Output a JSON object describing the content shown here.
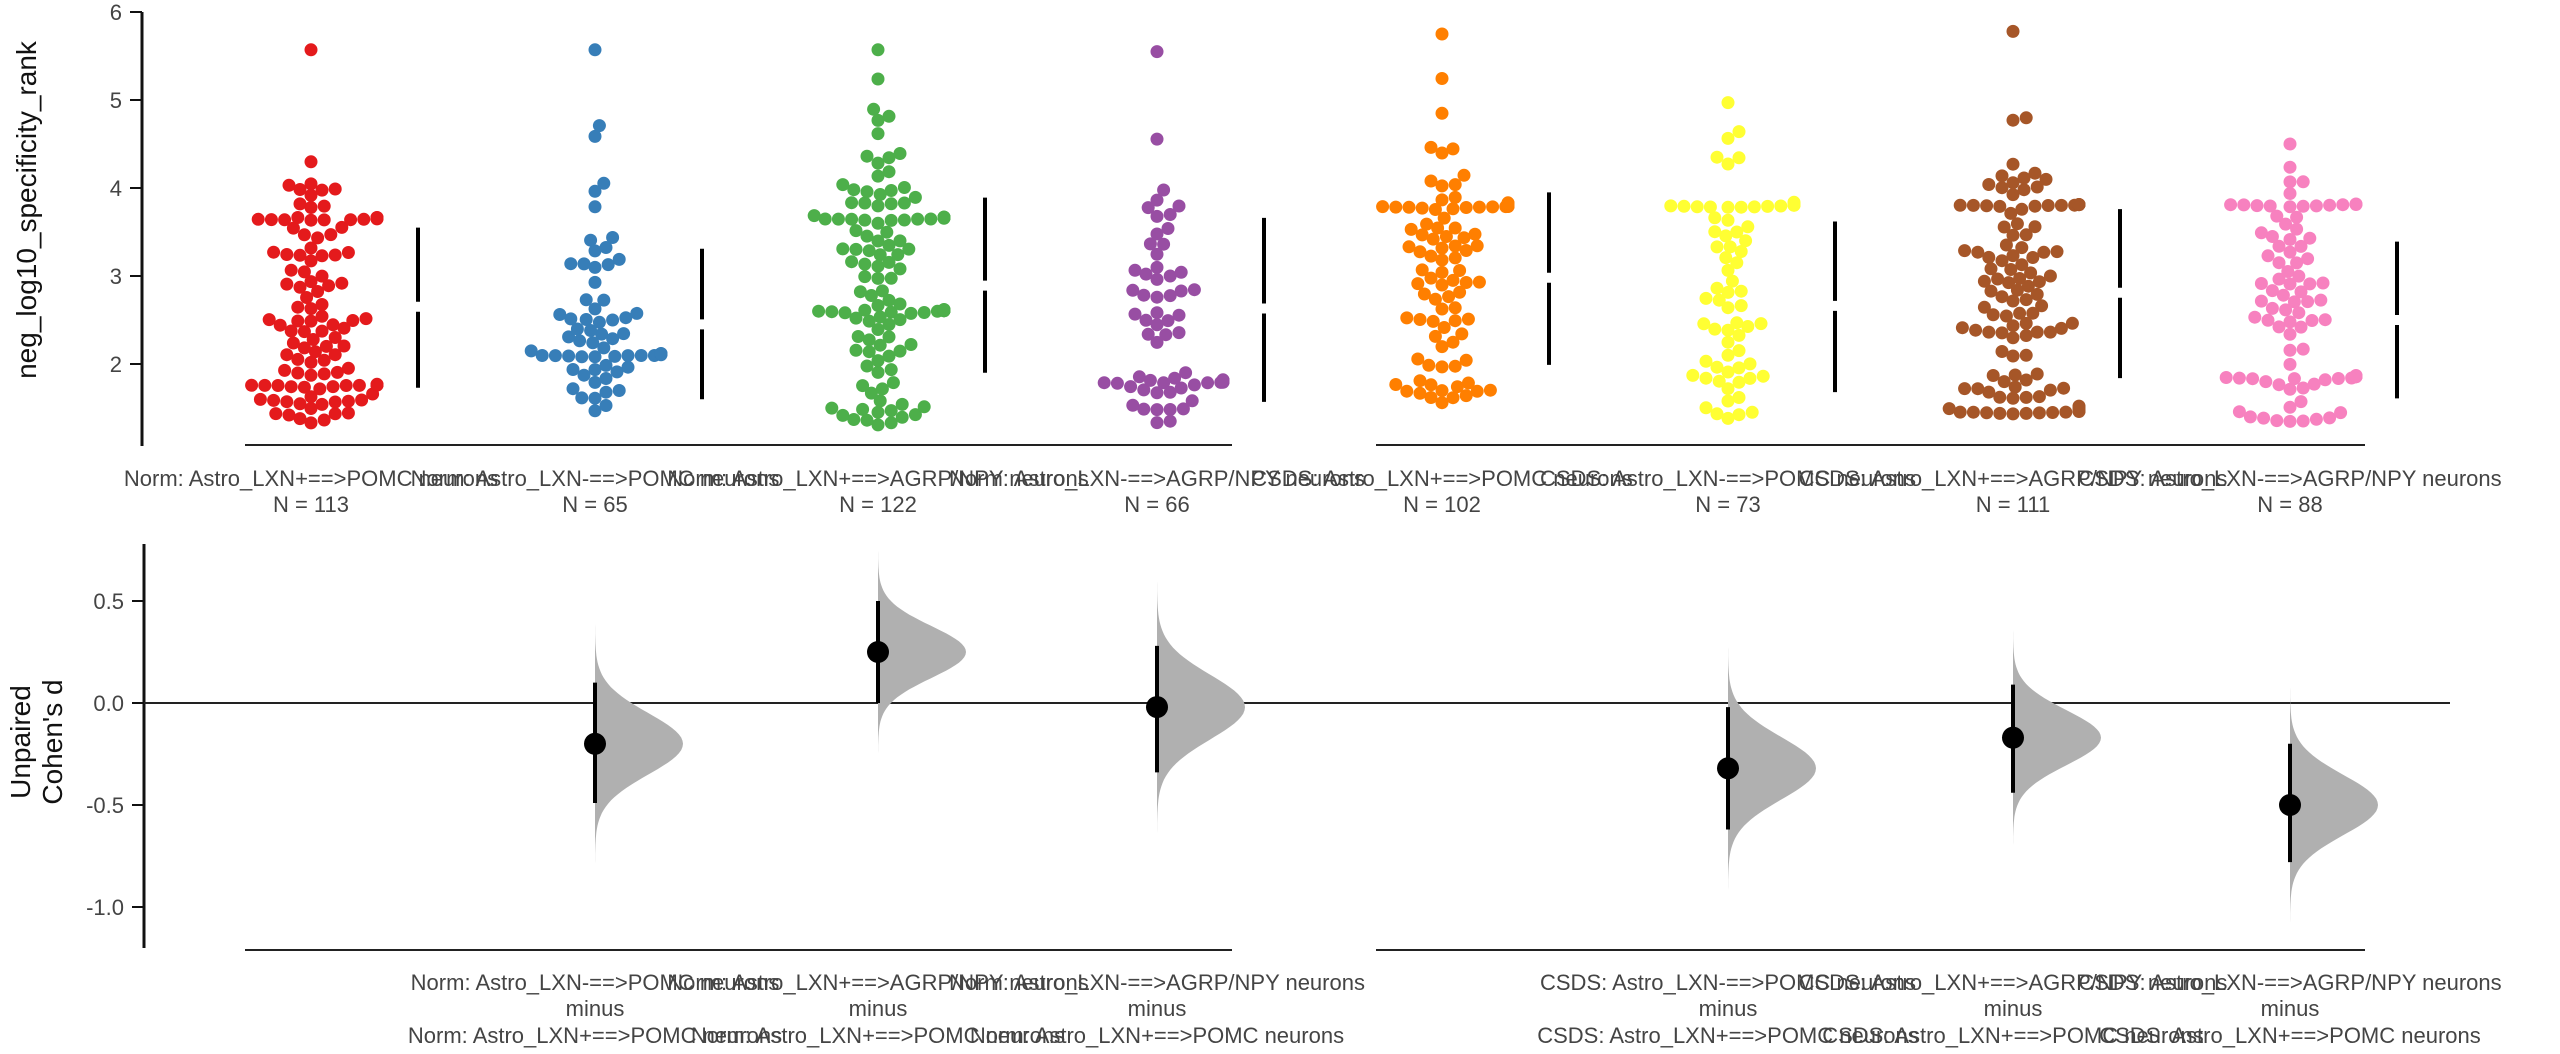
{
  "chart_data": [
    {
      "type": "scatter",
      "subtype": "swarm",
      "title": "",
      "ylabel": "neg_log10_specificity_rank",
      "xlabel": "",
      "ylim": [
        1.1,
        6.0
      ],
      "yticks": [
        2,
        3,
        4,
        5,
        6
      ],
      "grid": false,
      "legend": "none",
      "groups": [
        {
          "label": "Norm: Astro_LXN+==>POMC neurons",
          "n_label": "N = 113",
          "n": 113,
          "color": "#e41a1c",
          "mean": 2.65,
          "sd_low": 1.73,
          "sd_high": 3.55,
          "min": 1.3,
          "max": 5.57,
          "modes": [
            1.75,
            3.65
          ]
        },
        {
          "label": "Norm: Astro_LXN-==>POMC neurons",
          "n_label": "N = 65",
          "n": 65,
          "color": "#377eb8",
          "mean": 2.45,
          "sd_low": 1.6,
          "sd_high": 3.31,
          "min": 1.32,
          "max": 5.57,
          "modes": [
            2.1
          ]
        },
        {
          "label": "Norm: Astro_LXN+==>AGRP/NPY neurons",
          "n_label": "N = 122",
          "n": 122,
          "color": "#4daf4a",
          "mean": 2.89,
          "sd_low": 1.9,
          "sd_high": 3.89,
          "min": 1.3,
          "max": 5.57,
          "modes": [
            2.6,
            3.65
          ]
        },
        {
          "label": "Norm: Astro_LXN-==>AGRP/NPY neurons",
          "n_label": "N = 66",
          "n": 66,
          "color": "#984ea3",
          "mean": 2.63,
          "sd_low": 1.57,
          "sd_high": 3.66,
          "min": 1.3,
          "max": 5.55,
          "modes": [
            1.8
          ]
        },
        {
          "label": "CSDS: Astro_LXN+==>POMC neurons",
          "n_label": "N = 102",
          "n": 102,
          "color": "#ff7f00",
          "mean": 2.98,
          "sd_low": 1.99,
          "sd_high": 3.95,
          "min": 1.55,
          "max": 5.75,
          "modes": [
            3.8
          ]
        },
        {
          "label": "CSDS: Astro_LXN-==>POMC neurons",
          "n_label": "N = 73",
          "n": 73,
          "color": "#ffff33",
          "mean": 2.66,
          "sd_low": 1.68,
          "sd_high": 3.62,
          "min": 1.3,
          "max": 4.97,
          "modes": [
            3.8
          ]
        },
        {
          "label": "CSDS: Astro_LXN+==>AGRP/NPY neurons",
          "n_label": "N = 111",
          "n": 111,
          "color": "#a65628",
          "mean": 2.81,
          "sd_low": 1.84,
          "sd_high": 3.76,
          "min": 1.45,
          "max": 5.78,
          "modes": [
            1.45,
            3.8
          ]
        },
        {
          "label": "CSDS: Astro_LXN-==>AGRP/NPY neurons",
          "n_label": "N = 88",
          "n": 88,
          "color": "#f781bf",
          "mean": 2.5,
          "sd_low": 1.61,
          "sd_high": 3.39,
          "min": 1.3,
          "max": 4.5,
          "modes": [
            1.85,
            3.8
          ]
        }
      ],
      "brackets": [
        [
          0,
          3
        ],
        [
          4,
          7
        ]
      ]
    },
    {
      "type": "scatter",
      "subtype": "estimation-plot",
      "title": "",
      "ylabel": "Unpaired\nCohen's d",
      "ylabel_lines": [
        "Unpaired",
        "Cohen's d"
      ],
      "xlabel": "",
      "ylim": [
        -1.2,
        0.77
      ],
      "yticks": [
        0.5,
        0.0,
        -0.5,
        -1.0
      ],
      "ytick_labels": [
        "0.5",
        "0.0",
        "-0.5",
        "-1.0"
      ],
      "zero_line": true,
      "grid": false,
      "legend": "none",
      "distribution_color": "#b0b0b0",
      "deltas": [
        {
          "group_index": 1,
          "test": "Norm: Astro_LXN-==>POMC neurons",
          "control": "Norm: Astro_LXN+==>POMC neurons",
          "joiner": "minus",
          "d": -0.2,
          "ci": [
            -0.49,
            0.1
          ]
        },
        {
          "group_index": 2,
          "test": "Norm: Astro_LXN+==>AGRP/NPY neurons",
          "control": "Norm: Astro_LXN+==>POMC neurons",
          "joiner": "minus",
          "d": 0.25,
          "ci": [
            0.0,
            0.5
          ]
        },
        {
          "group_index": 3,
          "test": "Norm: Astro_LXN-==>AGRP/NPY neurons",
          "control": "Norm: Astro_LXN+==>POMC neurons",
          "joiner": "minus",
          "d": -0.02,
          "ci": [
            -0.34,
            0.28
          ]
        },
        {
          "group_index": 5,
          "test": "CSDS: Astro_LXN-==>POMC neurons",
          "control": "CSDS: Astro_LXN+==>POMC neurons",
          "joiner": "minus",
          "d": -0.32,
          "ci": [
            -0.62,
            -0.02
          ]
        },
        {
          "group_index": 6,
          "test": "CSDS: Astro_LXN+==>AGRP/NPY neurons",
          "control": "CSDS: Astro_LXN+==>POMC neurons",
          "joiner": "minus",
          "d": -0.17,
          "ci": [
            -0.44,
            0.09
          ]
        },
        {
          "group_index": 7,
          "test": "CSDS: Astro_LXN-==>AGRP/NPY neurons",
          "control": "CSDS: Astro_LXN+==>POMC neurons",
          "joiner": "minus",
          "d": -0.5,
          "ci": [
            -0.78,
            -0.2
          ]
        }
      ],
      "brackets": [
        [
          0,
          3
        ],
        [
          4,
          7
        ]
      ]
    }
  ]
}
